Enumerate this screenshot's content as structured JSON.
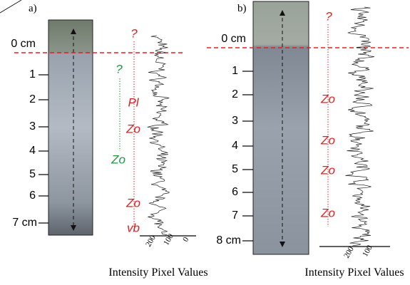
{
  "panels": [
    {
      "label": "a)",
      "depth_labels": [
        "0 cm",
        "1",
        "2",
        "3",
        "4",
        "5",
        "6",
        "7 cm"
      ],
      "red_annotations": [
        "?",
        "Pl",
        "Zo",
        "Zo",
        "vb"
      ],
      "green_annotations": [
        "?",
        "Zo"
      ],
      "intensity_ticks": [
        "200",
        "100",
        "0"
      ],
      "axis_label": "Intensity Pixel Values"
    },
    {
      "label": "b)",
      "depth_labels": [
        "0 cm",
        "1",
        "2",
        "3",
        "4",
        "5",
        "6",
        "7",
        "8 cm"
      ],
      "red_annotations": [
        "?",
        "Zo",
        "Zo",
        "Zo",
        "Zo"
      ],
      "intensity_ticks": [
        "200",
        "100"
      ],
      "axis_label": "Intensity Pixel Values"
    }
  ]
}
